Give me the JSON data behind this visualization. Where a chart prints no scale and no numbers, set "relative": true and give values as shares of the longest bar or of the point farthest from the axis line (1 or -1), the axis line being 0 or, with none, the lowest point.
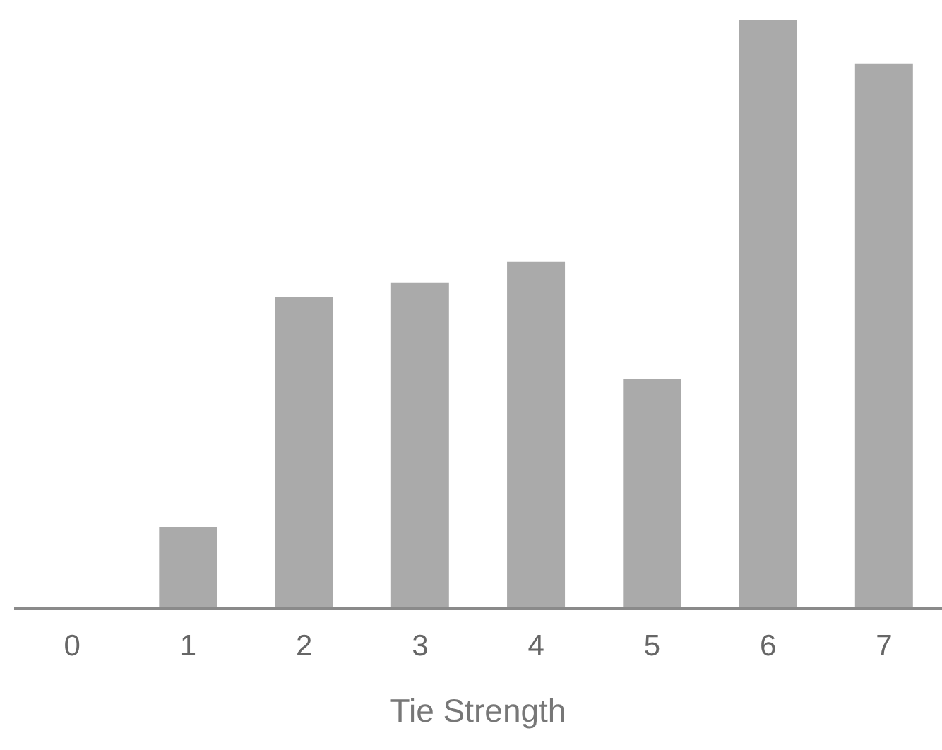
{
  "chart_data": {
    "type": "bar",
    "relative": true,
    "xlabel": "Tie Strength",
    "categories": [
      "0",
      "1",
      "2",
      "3",
      "4",
      "5",
      "6",
      "7"
    ],
    "values": [
      0,
      0.139,
      0.529,
      0.553,
      0.589,
      0.39,
      1,
      0.926
    ],
    "color": "#aaaaaa",
    "grid": false,
    "legend": false
  }
}
